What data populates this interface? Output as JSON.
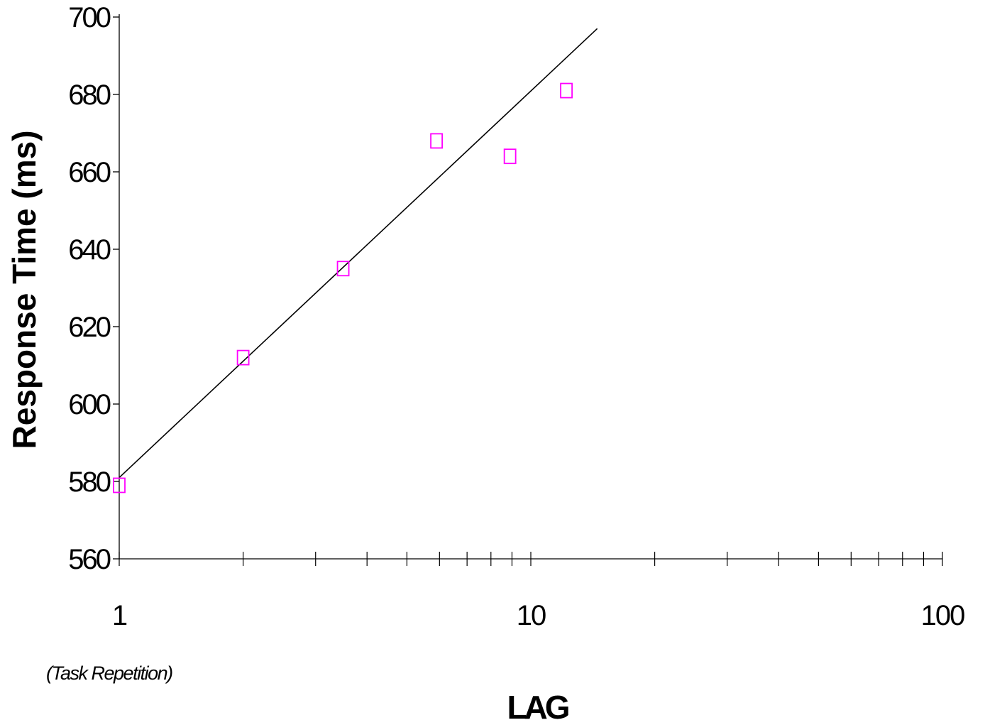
{
  "chart_data": {
    "type": "scatter",
    "title": "",
    "xlabel": "LAG",
    "x_note": "(Task Repetition)",
    "ylabel": "Response Time (ms)",
    "x_scale": "log",
    "xlim": [
      1,
      100
    ],
    "ylim": [
      560,
      700
    ],
    "x_ticks": [
      "1",
      "10",
      "100"
    ],
    "y_ticks": [
      "560",
      "580",
      "600",
      "620",
      "640",
      "660",
      "680",
      "700"
    ],
    "grid": false,
    "legend": "none",
    "marker": "hollow-square",
    "marker_color": "#ff00ff",
    "line_color": "#000000",
    "points": [
      {
        "x": 1,
        "y": 579
      },
      {
        "x": 2,
        "y": 612
      },
      {
        "x": 3.5,
        "y": 635
      },
      {
        "x": 5.9,
        "y": 668
      },
      {
        "x": 8.9,
        "y": 664
      },
      {
        "x": 12.2,
        "y": 681
      }
    ],
    "trend_line": {
      "type": "logarithmic fit",
      "from": {
        "x": 1,
        "y": 581
      },
      "to": {
        "x": 14.5,
        "y": 697
      }
    }
  }
}
